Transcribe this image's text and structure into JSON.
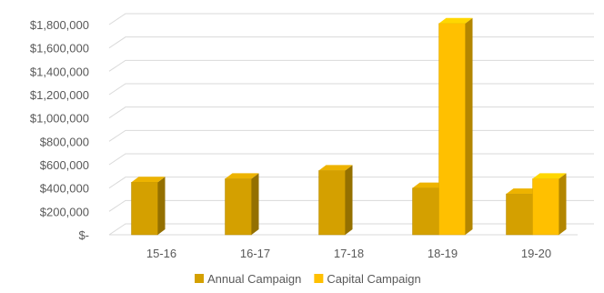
{
  "chart_data": {
    "type": "bar",
    "title": "",
    "xlabel": "",
    "ylabel": "",
    "categories": [
      "15-16",
      "16-17",
      "17-18",
      "18-19",
      "19-20"
    ],
    "series": [
      {
        "name": "Annual Campaign",
        "values": [
          450000,
          480000,
          550000,
          400000,
          350000
        ],
        "color": "#D4A000"
      },
      {
        "name": "Capital Campaign",
        "values": [
          0,
          0,
          0,
          1810000,
          480000
        ],
        "color": "#FFC000"
      }
    ],
    "y_ticks": [
      "$-",
      "$200,000",
      "$400,000",
      "$600,000",
      "$800,000",
      "$1,000,000",
      "$1,200,000",
      "$1,400,000",
      "$1,600,000",
      "$1,800,000"
    ],
    "ylim": [
      0,
      1800000
    ],
    "grid": true,
    "legend_position": "bottom",
    "style": "3d-column"
  }
}
